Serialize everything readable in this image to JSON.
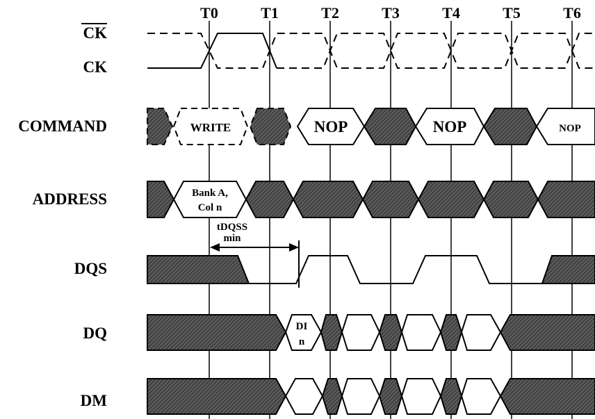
{
  "time_markers": [
    "T0",
    "T1",
    "T2",
    "T3",
    "T4",
    "T5",
    "T6"
  ],
  "signals": {
    "ck_bar": "CK",
    "ck": "CK",
    "command": "COMMAND",
    "address": "ADDRESS",
    "dqs": "DQS",
    "dq": "DQ",
    "dm": "DM"
  },
  "command_cells": {
    "write": "WRITE",
    "nop1": "NOP",
    "nop2": "NOP",
    "nop3": "NOP"
  },
  "address_cell": {
    "line1": "Bank A,",
    "line2": "Col n"
  },
  "timing": {
    "name": "tDQSS",
    "qualifier": "min"
  },
  "dq_cell": {
    "line1": "DI",
    "line2": "n"
  },
  "colors": {
    "line": "#000000",
    "hatch_fill": "#555555",
    "background": "#ffffff"
  }
}
